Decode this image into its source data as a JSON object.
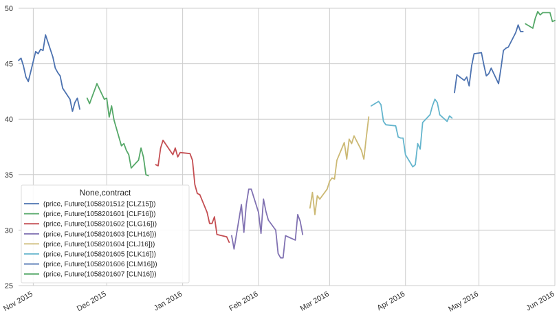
{
  "chart_data": {
    "type": "line",
    "title": "",
    "xlabel": "",
    "ylabel": "",
    "ylim": [
      25,
      50
    ],
    "xlim": [
      "2015-10-26",
      "2016-06-01"
    ],
    "grid": true,
    "legend_placement": "lower-left",
    "legend_title": "None,contract",
    "y_ticks": [
      25,
      30,
      35,
      40,
      45,
      50
    ],
    "y_tick_labels": [
      "25",
      "30",
      "35",
      "40",
      "45",
      "50"
    ],
    "x_ticks": [
      {
        "date": "2015-11-01",
        "label": "Nov 2015"
      },
      {
        "date": "2015-12-01",
        "label": "Dec 2015"
      },
      {
        "date": "2016-01-01",
        "label": "Jan 2016"
      },
      {
        "date": "2016-02-01",
        "label": "Feb 2016"
      },
      {
        "date": "2016-03-01",
        "label": "Mar 2016"
      },
      {
        "date": "2016-04-01",
        "label": "Apr 2016"
      },
      {
        "date": "2016-05-01",
        "label": "May 2016"
      },
      {
        "date": "2016-06-01",
        "label": "Jun 2016"
      }
    ],
    "series": [
      {
        "name": "(price, Future(1058201512 [CLZ15]))",
        "color": "#4c72b0",
        "x": [
          "2015-10-26",
          "2015-10-27",
          "2015-10-28",
          "2015-10-29",
          "2015-10-30",
          "2015-11-02",
          "2015-11-03",
          "2015-11-04",
          "2015-11-05",
          "2015-11-06",
          "2015-11-09",
          "2015-11-10",
          "2015-11-11",
          "2015-11-12",
          "2015-11-13",
          "2015-11-16",
          "2015-11-17",
          "2015-11-18",
          "2015-11-19",
          "2015-11-20"
        ],
        "values": [
          45.3,
          45.5,
          44.8,
          43.8,
          43.4,
          46.1,
          45.9,
          46.3,
          46.2,
          47.6,
          45.6,
          44.6,
          44.2,
          43.9,
          42.8,
          41.8,
          40.7,
          41.5,
          41.9,
          40.9
        ]
      },
      {
        "name": "(price, Future(1058201601 [CLF16]))",
        "color": "#55a868",
        "x": [
          "2015-11-23",
          "2015-11-24",
          "2015-11-25",
          "2015-11-27",
          "2015-11-30",
          "2015-12-01",
          "2015-12-02",
          "2015-12-03",
          "2015-12-04",
          "2015-12-07",
          "2015-12-08",
          "2015-12-09",
          "2015-12-10",
          "2015-12-11",
          "2015-12-14",
          "2015-12-15",
          "2015-12-16",
          "2015-12-17",
          "2015-12-18"
        ],
        "values": [
          41.9,
          41.4,
          42.0,
          43.2,
          41.8,
          41.9,
          40.2,
          41.2,
          39.9,
          37.6,
          37.8,
          37.2,
          36.8,
          35.6,
          36.3,
          37.4,
          36.6,
          35.0,
          34.9
        ]
      },
      {
        "name": "(price, Future(1058201602 [CLG16]))",
        "color": "#c44e52",
        "x": [
          "2015-12-21",
          "2015-12-22",
          "2015-12-23",
          "2015-12-24",
          "2015-12-28",
          "2015-12-29",
          "2015-12-30",
          "2015-12-31",
          "2016-01-04",
          "2016-01-05",
          "2016-01-06",
          "2016-01-07",
          "2016-01-08",
          "2016-01-11",
          "2016-01-12",
          "2016-01-13",
          "2016-01-14",
          "2016-01-15",
          "2016-01-19",
          "2016-01-20"
        ],
        "values": [
          35.9,
          35.8,
          37.4,
          38.1,
          36.8,
          37.4,
          36.6,
          37.0,
          36.9,
          36.3,
          34.1,
          33.3,
          33.2,
          31.6,
          30.6,
          30.6,
          31.2,
          29.6,
          29.4,
          28.9
        ]
      },
      {
        "name": "(price, Future(1058201603 [CLH16]))",
        "color": "#8172b2",
        "x": [
          "2016-01-21",
          "2016-01-22",
          "2016-01-25",
          "2016-01-26",
          "2016-01-27",
          "2016-01-28",
          "2016-01-29",
          "2016-02-01",
          "2016-02-02",
          "2016-02-03",
          "2016-02-04",
          "2016-02-05",
          "2016-02-08",
          "2016-02-09",
          "2016-02-10",
          "2016-02-11",
          "2016-02-12",
          "2016-02-16",
          "2016-02-17",
          "2016-02-18",
          "2016-02-19"
        ],
        "values": [
          29.5,
          28.3,
          32.3,
          29.8,
          32.3,
          33.7,
          33.7,
          31.6,
          29.7,
          32.8,
          31.7,
          30.9,
          30.0,
          27.9,
          27.5,
          27.5,
          29.5,
          29.1,
          31.4,
          30.8,
          29.6
        ]
      },
      {
        "name": "(price, Future(1058201604 [CLJ16]))",
        "color": "#ccb974",
        "x": [
          "2016-02-22",
          "2016-02-23",
          "2016-02-24",
          "2016-02-25",
          "2016-02-26",
          "2016-02-29",
          "2016-03-01",
          "2016-03-02",
          "2016-03-03",
          "2016-03-04",
          "2016-03-07",
          "2016-03-08",
          "2016-03-09",
          "2016-03-10",
          "2016-03-11",
          "2016-03-14",
          "2016-03-15",
          "2016-03-16",
          "2016-03-17"
        ],
        "values": [
          32.0,
          33.4,
          31.4,
          33.1,
          32.8,
          33.7,
          34.4,
          34.7,
          34.6,
          36.3,
          37.9,
          36.4,
          38.2,
          37.8,
          38.5,
          37.2,
          36.4,
          38.4,
          40.2
        ]
      },
      {
        "name": "(price, Future(1058201605 [CLK16]))",
        "color": "#64b5cd",
        "x": [
          "2016-03-18",
          "2016-03-21",
          "2016-03-22",
          "2016-03-23",
          "2016-03-24",
          "2016-03-28",
          "2016-03-29",
          "2016-03-30",
          "2016-03-31",
          "2016-04-01",
          "2016-04-04",
          "2016-04-05",
          "2016-04-06",
          "2016-04-07",
          "2016-04-08",
          "2016-04-11",
          "2016-04-12",
          "2016-04-13",
          "2016-04-14",
          "2016-04-15",
          "2016-04-18",
          "2016-04-19",
          "2016-04-20"
        ],
        "values": [
          41.2,
          41.6,
          41.3,
          39.8,
          39.5,
          39.4,
          38.4,
          38.3,
          38.3,
          36.8,
          35.7,
          35.9,
          37.8,
          37.3,
          39.7,
          40.4,
          41.2,
          41.8,
          41.5,
          40.4,
          39.8,
          40.3,
          40.1
        ]
      },
      {
        "name": "(price, Future(1058201606 [CLM16]))",
        "color": "#4c72b0",
        "x": [
          "2016-04-21",
          "2016-04-22",
          "2016-04-25",
          "2016-04-26",
          "2016-04-27",
          "2016-04-28",
          "2016-04-29",
          "2016-05-02",
          "2016-05-03",
          "2016-05-04",
          "2016-05-05",
          "2016-05-06",
          "2016-05-09",
          "2016-05-10",
          "2016-05-11",
          "2016-05-12",
          "2016-05-13",
          "2016-05-16",
          "2016-05-17",
          "2016-05-18",
          "2016-05-19"
        ],
        "values": [
          42.4,
          44.0,
          43.5,
          43.8,
          43.0,
          44.8,
          45.9,
          46.0,
          44.9,
          43.9,
          44.1,
          44.6,
          43.2,
          44.6,
          46.2,
          46.4,
          46.5,
          47.8,
          48.5,
          47.9,
          47.9
        ]
      },
      {
        "name": "(price, Future(1058201607 [CLN16]))",
        "color": "#55a868",
        "x": [
          "2016-05-20",
          "2016-05-23",
          "2016-05-24",
          "2016-05-25",
          "2016-05-26",
          "2016-05-27",
          "2016-05-30",
          "2016-05-31",
          "2016-06-01"
        ],
        "values": [
          48.6,
          48.2,
          49.1,
          49.7,
          49.4,
          49.6,
          49.6,
          48.8,
          48.9
        ]
      }
    ]
  }
}
